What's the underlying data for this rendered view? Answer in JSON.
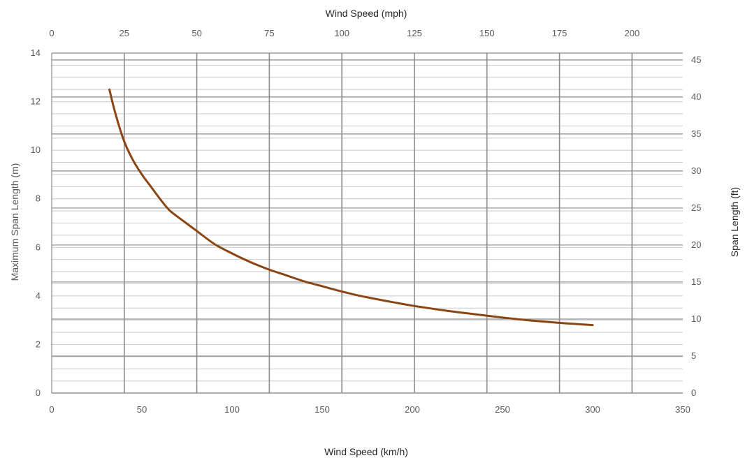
{
  "chart_data": {
    "type": "line",
    "title": "",
    "x_bottom": {
      "label": "Wind Speed (km/h)",
      "range": [
        0,
        350
      ],
      "ticks": [
        "0",
        "50",
        "100",
        "150",
        "200",
        "250",
        "300",
        "350"
      ]
    },
    "x_top": {
      "label": "Wind Speed (mph)",
      "range": [
        0,
        217.5
      ],
      "ticks": [
        "0",
        "25",
        "50",
        "75",
        "100",
        "125",
        "150",
        "175",
        "200"
      ]
    },
    "y_left": {
      "label": "Maximum Span Length (m)",
      "range": [
        0,
        14
      ],
      "ticks": [
        "0",
        "2",
        "4",
        "6",
        "8",
        "10",
        "12",
        "14"
      ]
    },
    "y_right": {
      "label": "Span Length (ft)",
      "range": [
        0,
        45.93
      ],
      "ticks": [
        "0",
        "5",
        "10",
        "15",
        "20",
        "25",
        "30",
        "35",
        "40",
        "45"
      ]
    },
    "grid": true,
    "legend": "none",
    "series_color": "#8B4513",
    "series": [
      {
        "x": [
          32,
          35,
          40,
          45,
          50,
          55,
          60,
          65,
          70,
          80,
          90,
          100,
          110,
          120,
          130,
          140,
          150,
          160,
          170,
          180,
          190,
          200,
          220,
          240,
          260,
          280,
          300
        ],
        "y": [
          12.5,
          11.6,
          10.4,
          9.6,
          9.0,
          8.5,
          8.0,
          7.55,
          7.25,
          6.7,
          6.15,
          5.75,
          5.4,
          5.1,
          4.85,
          4.6,
          4.4,
          4.2,
          4.02,
          3.87,
          3.73,
          3.6,
          3.38,
          3.2,
          3.03,
          2.9,
          2.8
        ]
      }
    ]
  }
}
